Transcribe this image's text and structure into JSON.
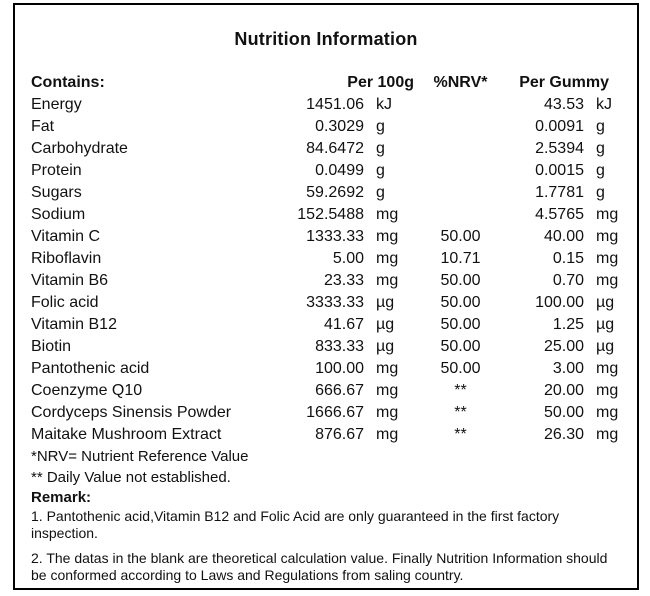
{
  "title": "Nutrition Information",
  "table": {
    "columns": {
      "contains": "Contains:",
      "per_100g": "Per 100g",
      "nrv": "%NRV*",
      "per_gummy": "Per Gummy"
    },
    "rows": [
      {
        "name": "Energy",
        "per_100g": "1451.06",
        "per_100g_unit": "kJ",
        "nrv": "",
        "per_gummy": "43.53",
        "per_gummy_unit": "kJ"
      },
      {
        "name": "Fat",
        "per_100g": "0.3029",
        "per_100g_unit": "g",
        "nrv": "",
        "per_gummy": "0.0091",
        "per_gummy_unit": "g"
      },
      {
        "name": "Carbohydrate",
        "per_100g": "84.6472",
        "per_100g_unit": "g",
        "nrv": "",
        "per_gummy": "2.5394",
        "per_gummy_unit": "g"
      },
      {
        "name": "Protein",
        "per_100g": "0.0499",
        "per_100g_unit": "g",
        "nrv": "",
        "per_gummy": "0.0015",
        "per_gummy_unit": "g"
      },
      {
        "name": "Sugars",
        "per_100g": "59.2692",
        "per_100g_unit": "g",
        "nrv": "",
        "per_gummy": "1.7781",
        "per_gummy_unit": "g"
      },
      {
        "name": "Sodium",
        "per_100g": "152.5488",
        "per_100g_unit": "mg",
        "nrv": "",
        "per_gummy": "4.5765",
        "per_gummy_unit": "mg"
      },
      {
        "name": "Vitamin C",
        "per_100g": "1333.33",
        "per_100g_unit": "mg",
        "nrv": "50.00",
        "per_gummy": "40.00",
        "per_gummy_unit": "mg"
      },
      {
        "name": "Riboflavin",
        "per_100g": "5.00",
        "per_100g_unit": "mg",
        "nrv": "10.71",
        "per_gummy": "0.15",
        "per_gummy_unit": "mg"
      },
      {
        "name": "Vitamin B6",
        "per_100g": "23.33",
        "per_100g_unit": "mg",
        "nrv": "50.00",
        "per_gummy": "0.70",
        "per_gummy_unit": "mg"
      },
      {
        "name": "Folic acid",
        "per_100g": "3333.33",
        "per_100g_unit": "µg",
        "nrv": "50.00",
        "per_gummy": "100.00",
        "per_gummy_unit": "µg"
      },
      {
        "name": "Vitamin B12",
        "per_100g": "41.67",
        "per_100g_unit": "µg",
        "nrv": "50.00",
        "per_gummy": "1.25",
        "per_gummy_unit": "µg"
      },
      {
        "name": "Biotin",
        "per_100g": "833.33",
        "per_100g_unit": "µg",
        "nrv": "50.00",
        "per_gummy": "25.00",
        "per_gummy_unit": "µg"
      },
      {
        "name": "Pantothenic acid",
        "per_100g": "100.00",
        "per_100g_unit": "mg",
        "nrv": "50.00",
        "per_gummy": "3.00",
        "per_gummy_unit": "mg"
      },
      {
        "name": "Coenzyme Q10",
        "per_100g": "666.67",
        "per_100g_unit": "mg",
        "nrv": "**",
        "per_gummy": "20.00",
        "per_gummy_unit": "mg"
      },
      {
        "name": "Cordyceps Sinensis Powder",
        "per_100g": "1666.67",
        "per_100g_unit": "mg",
        "nrv": "**",
        "per_gummy": "50.00",
        "per_gummy_unit": "mg"
      },
      {
        "name": "Maitake Mushroom Extract",
        "per_100g": "876.67",
        "per_100g_unit": "mg",
        "nrv": "**",
        "per_gummy": "26.30",
        "per_gummy_unit": "mg"
      }
    ]
  },
  "footnotes": {
    "nrv_note": "*NRV= Nutrient Reference Value",
    "daily_value_note": "** Daily Value not established."
  },
  "remark": {
    "heading": "Remark:",
    "items": [
      "1. Pantothenic acid,Vitamin B12 and Folic Acid are only guaranteed in the first factory inspection.",
      "2. The datas in the blank are theoretical calculation value. Finally Nutrition Information should be conformed according to Laws and Regulations from saling country."
    ]
  }
}
